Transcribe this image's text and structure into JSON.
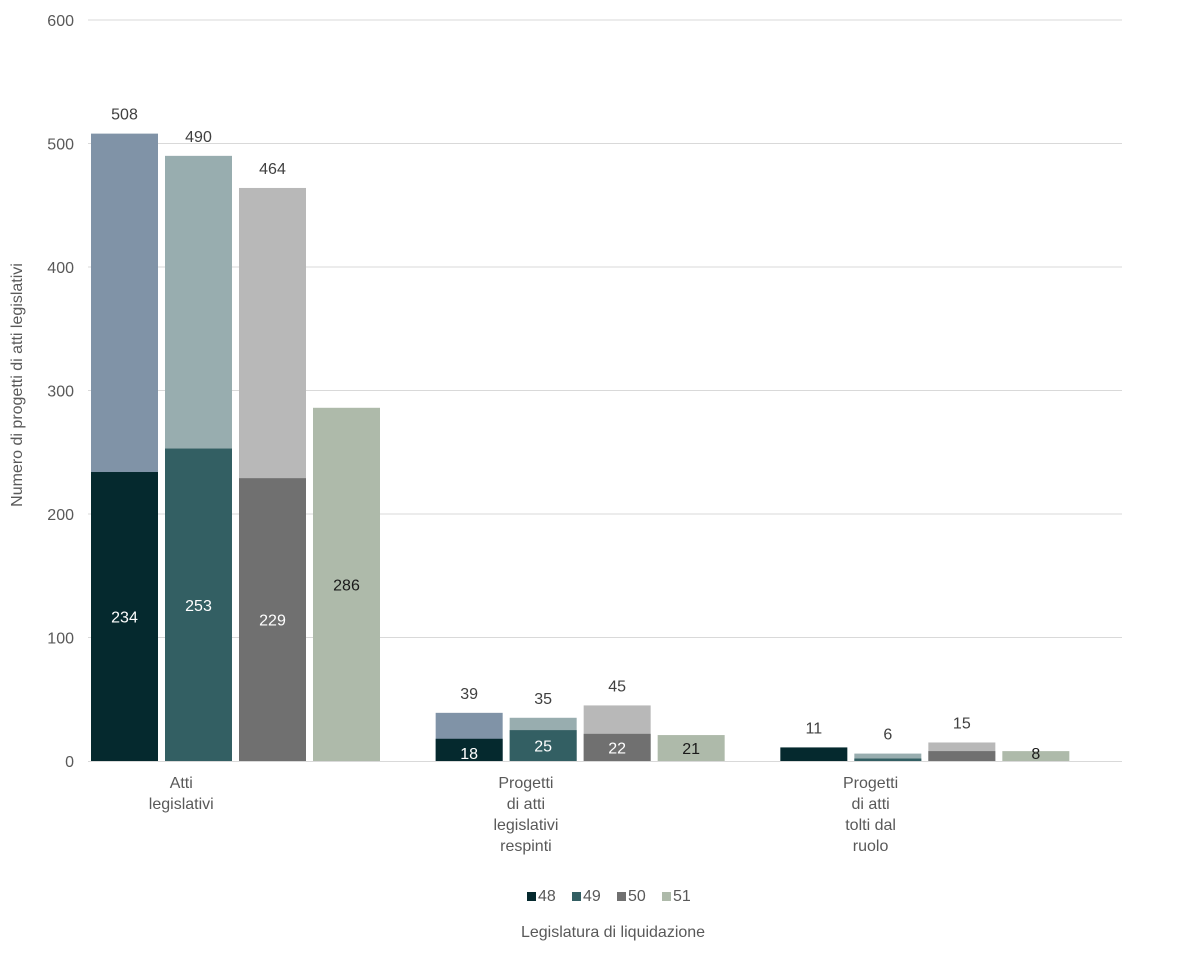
{
  "chart_data": {
    "type": "bar",
    "subtype": "overlapping-stacked",
    "title": "",
    "xlabel": "Legislatura di liquidazione",
    "ylabel": "Numero di progetti di atti legislativi",
    "ylim": [
      0,
      600
    ],
    "yticks": [
      "0",
      "100",
      "200",
      "300",
      "400",
      "500",
      "600"
    ],
    "grid": true,
    "legend_position": "bottom",
    "categories": [
      [
        "Atti",
        "legislativi"
      ],
      [
        "Progetti",
        "di atti",
        "legislativi",
        "respinti"
      ],
      [
        "Progetti",
        "di atti",
        "tolti dal",
        "ruolo"
      ]
    ],
    "series": [
      {
        "name": "48",
        "color": "#05292e",
        "total_color": "#8093a7",
        "base_values": [
          234,
          18,
          11
        ],
        "base_labels": [
          "234",
          "18",
          ""
        ],
        "total_values": [
          508,
          39,
          11
        ],
        "total_labels": [
          "508",
          "39",
          "11"
        ]
      },
      {
        "name": "49",
        "color": "#335f63",
        "total_color": "#98adaf",
        "base_values": [
          253,
          25,
          2
        ],
        "base_labels": [
          "253",
          "25",
          ""
        ],
        "total_values": [
          490,
          35,
          6
        ],
        "total_labels": [
          "490",
          "35",
          "6"
        ]
      },
      {
        "name": "50",
        "color": "#707070",
        "total_color": "#b8b8b8",
        "base_values": [
          229,
          22,
          8
        ],
        "base_labels": [
          "229",
          "22",
          ""
        ],
        "total_values": [
          464,
          45,
          15
        ],
        "total_labels": [
          "464",
          "45",
          "15"
        ]
      },
      {
        "name": "51",
        "color": "#aebaaa",
        "total_color": "#aebaaa",
        "base_values": [
          286,
          21,
          8
        ],
        "base_labels": [
          "286",
          "21",
          "8"
        ],
        "total_values": [
          286,
          21,
          8
        ],
        "total_labels": [
          "",
          "",
          ""
        ]
      }
    ]
  }
}
